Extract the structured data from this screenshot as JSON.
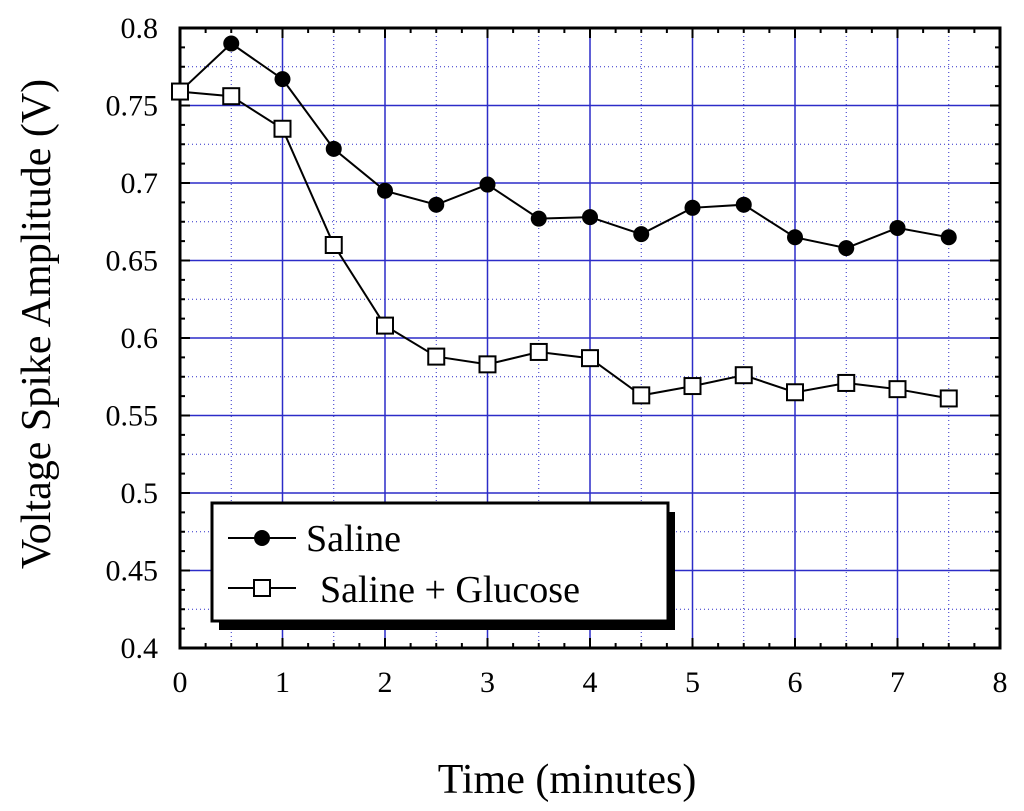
{
  "chart_data": {
    "type": "line",
    "title": "",
    "xlabel": "Time (minutes)",
    "ylabel": "Voltage Spike Amplitude (V)",
    "xlim": [
      0,
      8
    ],
    "ylim": [
      0.4,
      0.8
    ],
    "grid": true,
    "x_ticks": [
      {
        "value": 0,
        "label": "0"
      },
      {
        "value": 1,
        "label": "1"
      },
      {
        "value": 2,
        "label": "2"
      },
      {
        "value": 3,
        "label": "3"
      },
      {
        "value": 4,
        "label": "4"
      },
      {
        "value": 5,
        "label": "5"
      },
      {
        "value": 6,
        "label": "6"
      },
      {
        "value": 7,
        "label": "7"
      },
      {
        "value": 8,
        "label": "8"
      }
    ],
    "y_ticks": [
      {
        "value": 0.4,
        "label": "0.4"
      },
      {
        "value": 0.45,
        "label": "0.45"
      },
      {
        "value": 0.5,
        "label": "0.5"
      },
      {
        "value": 0.55,
        "label": "0.55"
      },
      {
        "value": 0.6,
        "label": "0.6"
      },
      {
        "value": 0.65,
        "label": "0.65"
      },
      {
        "value": 0.7,
        "label": "0.7"
      },
      {
        "value": 0.75,
        "label": "0.75"
      },
      {
        "value": 0.8,
        "label": "0.8"
      }
    ],
    "x": [
      0,
      0.5,
      1,
      1.5,
      2,
      2.5,
      3,
      3.5,
      4,
      4.5,
      5,
      5.5,
      6,
      6.5,
      7,
      7.5
    ],
    "series": [
      {
        "name": "Saline",
        "marker": "filled-circle",
        "x": [
          0.5,
          1,
          1.5,
          2,
          2.5,
          3,
          3.5,
          4,
          4.5,
          5,
          5.5,
          6,
          6.5,
          7,
          7.5
        ],
        "values": [
          0.79,
          0.767,
          0.722,
          0.695,
          0.686,
          0.699,
          0.677,
          0.678,
          0.667,
          0.684,
          0.686,
          0.665,
          0.658,
          0.671,
          0.665
        ]
      },
      {
        "name": "Saline + Glucose",
        "marker": "open-square",
        "x": [
          0,
          0.5,
          1,
          1.5,
          2,
          2.5,
          3,
          3.5,
          4,
          4.5,
          5,
          5.5,
          6,
          6.5,
          7,
          7.5
        ],
        "values": [
          0.759,
          0.756,
          0.735,
          0.66,
          0.608,
          0.588,
          0.583,
          0.591,
          0.587,
          0.563,
          0.569,
          0.576,
          0.565,
          0.571,
          0.567,
          0.561
        ]
      }
    ],
    "connector": {
      "from_x": 0,
      "from_value": 0.759,
      "to_x": 0.5,
      "to_value": 0.79
    },
    "legend": {
      "position": "bottom-left",
      "entries": [
        {
          "label": "Saline",
          "marker": "filled-circle"
        },
        {
          "label": "Saline + Glucose",
          "marker": "open-square"
        }
      ]
    },
    "colors": {
      "grid": "#2c2cc8",
      "axis": "#000000",
      "line": "#000000",
      "background": "#ffffff"
    }
  }
}
